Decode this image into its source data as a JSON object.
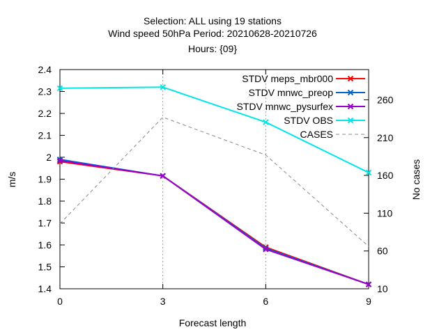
{
  "chart_data": {
    "type": "line",
    "title_lines": [
      "Selection: ALL using    19 stations",
      "Wind speed 50hPa   Period: 20210628-20210726",
      "Hours: {09}"
    ],
    "xlabel": "Forecast length",
    "ylabel": "m/s",
    "y2label": "No cases",
    "x": [
      0,
      3,
      6,
      9
    ],
    "xlim": [
      0,
      9
    ],
    "ylim": [
      1.4,
      2.4
    ],
    "y2lim": [
      10,
      300
    ],
    "x_ticks": [
      0,
      3,
      6,
      9
    ],
    "y_ticks": [
      1.4,
      1.5,
      1.6,
      1.7,
      1.8,
      1.9,
      2.0,
      2.1,
      2.2,
      2.3,
      2.4
    ],
    "y_tick_labels": [
      "1.4",
      "1.5",
      "1.6",
      "1.7",
      "1.8",
      "1.9",
      "2",
      "2.1",
      "2.2",
      "2.3",
      "2.4"
    ],
    "y2_ticks": [
      10,
      60,
      110,
      160,
      210,
      260
    ],
    "grid": "vertical at x ticks (dotted)",
    "legend_position": "top-right",
    "series": [
      {
        "name": "STDV meps_mbr000",
        "axis": "y",
        "color": "#ff0000",
        "marker": "x",
        "values": [
          1.98,
          1.915,
          1.59,
          1.42
        ]
      },
      {
        "name": "STDV mnwc_preop",
        "axis": "y",
        "color": "#0066cc",
        "marker": "x",
        "values": [
          1.99,
          1.915,
          1.585,
          1.42
        ]
      },
      {
        "name": "STDV mnwc_pysurfex",
        "axis": "y",
        "color": "#9900cc",
        "marker": "x",
        "values": [
          1.985,
          1.915,
          1.58,
          1.42
        ]
      },
      {
        "name": "STDV OBS",
        "axis": "y",
        "color": "#00e5e5",
        "marker": "x",
        "values": [
          2.315,
          2.32,
          2.16,
          1.93
        ]
      },
      {
        "name": "CASES",
        "axis": "y2",
        "color": "#888888",
        "dashed": true,
        "values": [
          96,
          237,
          187,
          66
        ]
      }
    ]
  }
}
